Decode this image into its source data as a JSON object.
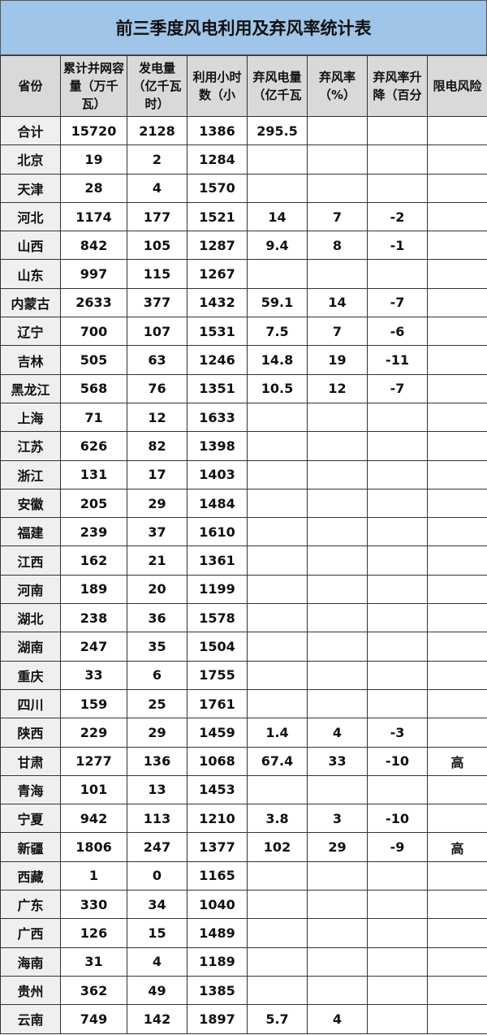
{
  "title": "前三季度风电利用及弃风率统计表",
  "headers": [
    "省份",
    "累计并网容量（万千瓦）",
    "发电量（亿千瓦时）",
    "利用小时数（小",
    "弃风电量（亿千瓦",
    "弃风率（%）",
    "弃风率升降（百分",
    "限电风险"
  ],
  "rows": [
    [
      "合计",
      "15720",
      "2128",
      "1386",
      "295.5",
      "",
      "",
      ""
    ],
    [
      "北京",
      "19",
      "2",
      "1284",
      "",
      "",
      "",
      ""
    ],
    [
      "天津",
      "28",
      "4",
      "1570",
      "",
      "",
      "",
      ""
    ],
    [
      "河北",
      "1174",
      "177",
      "1521",
      "14",
      "7",
      "-2",
      ""
    ],
    [
      "山西",
      "842",
      "105",
      "1287",
      "9.4",
      "8",
      "-1",
      ""
    ],
    [
      "山东",
      "997",
      "115",
      "1267",
      "",
      "",
      "",
      ""
    ],
    [
      "内蒙古",
      "2633",
      "377",
      "1432",
      "59.1",
      "14",
      "-7",
      ""
    ],
    [
      "辽宁",
      "700",
      "107",
      "1531",
      "7.5",
      "7",
      "-6",
      ""
    ],
    [
      "吉林",
      "505",
      "63",
      "1246",
      "14.8",
      "19",
      "-11",
      ""
    ],
    [
      "黑龙江",
      "568",
      "76",
      "1351",
      "10.5",
      "12",
      "-7",
      ""
    ],
    [
      "上海",
      "71",
      "12",
      "1633",
      "",
      "",
      "",
      ""
    ],
    [
      "江苏",
      "626",
      "82",
      "1398",
      "",
      "",
      "",
      ""
    ],
    [
      "浙江",
      "131",
      "17",
      "1403",
      "",
      "",
      "",
      ""
    ],
    [
      "安徽",
      "205",
      "29",
      "1484",
      "",
      "",
      "",
      ""
    ],
    [
      "福建",
      "239",
      "37",
      "1610",
      "",
      "",
      "",
      ""
    ],
    [
      "江西",
      "162",
      "21",
      "1361",
      "",
      "",
      "",
      ""
    ],
    [
      "河南",
      "189",
      "20",
      "1199",
      "",
      "",
      "",
      ""
    ],
    [
      "湖北",
      "238",
      "36",
      "1578",
      "",
      "",
      "",
      ""
    ],
    [
      "湖南",
      "247",
      "35",
      "1504",
      "",
      "",
      "",
      ""
    ],
    [
      "重庆",
      "33",
      "6",
      "1755",
      "",
      "",
      "",
      ""
    ],
    [
      "四川",
      "159",
      "25",
      "1761",
      "",
      "",
      "",
      ""
    ],
    [
      "陕西",
      "229",
      "29",
      "1459",
      "1.4",
      "4",
      "-3",
      ""
    ],
    [
      "甘肃",
      "1277",
      "136",
      "1068",
      "67.4",
      "33",
      "-10",
      "高"
    ],
    [
      "青海",
      "101",
      "13",
      "1453",
      "",
      "",
      "",
      ""
    ],
    [
      "宁夏",
      "942",
      "113",
      "1210",
      "3.8",
      "3",
      "-10",
      ""
    ],
    [
      "新疆",
      "1806",
      "247",
      "1377",
      "102",
      "29",
      "-9",
      "高"
    ],
    [
      "西藏",
      "1",
      "0",
      "1165",
      "",
      "",
      "",
      ""
    ],
    [
      "广东",
      "330",
      "34",
      "1040",
      "",
      "",
      "",
      ""
    ],
    [
      "广西",
      "126",
      "15",
      "1489",
      "",
      "",
      "",
      ""
    ],
    [
      "海南",
      "31",
      "4",
      "1189",
      "",
      "",
      "",
      ""
    ],
    [
      "贵州",
      "362",
      "49",
      "1385",
      "",
      "",
      "",
      ""
    ],
    [
      "云南",
      "749",
      "142",
      "1897",
      "5.7",
      "4",
      "",
      ""
    ]
  ],
  "colors": {
    "title_bg": "#9fc5e8",
    "header_bg": "#d9d9d9"
  }
}
